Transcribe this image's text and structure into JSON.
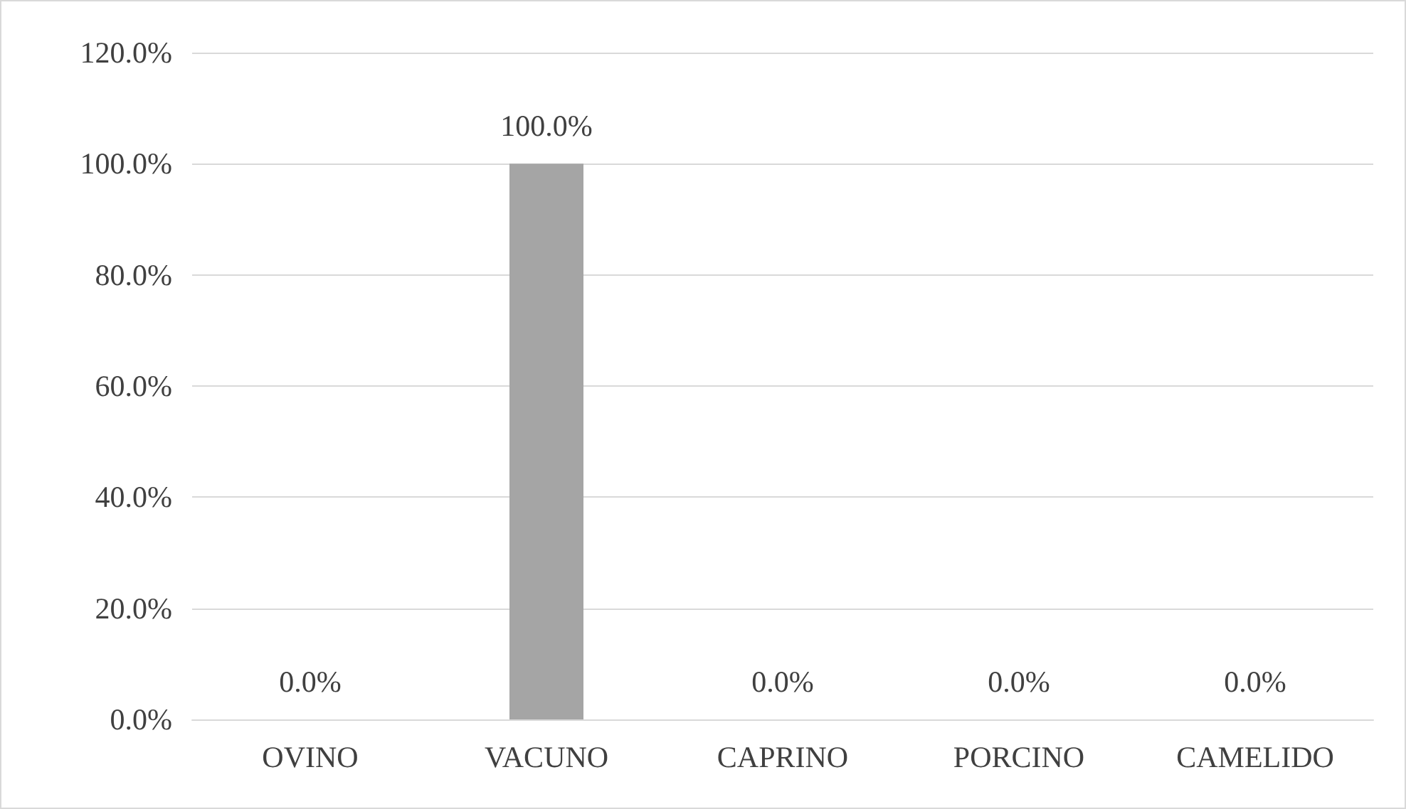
{
  "chart_data": {
    "type": "bar",
    "categories": [
      "OVINO",
      "VACUNO",
      "CAPRINO",
      "PORCINO",
      "CAMELIDO"
    ],
    "values": [
      0,
      100,
      0,
      0,
      0
    ],
    "value_labels": [
      "0.0%",
      "100.0%",
      "0.0%",
      "0.0%",
      "0.0%"
    ],
    "color": "#a5a5a5",
    "ylim": [
      0,
      120
    ],
    "yticks": [
      {
        "value": 0,
        "label": "0.0%"
      },
      {
        "value": 20,
        "label": "20.0%"
      },
      {
        "value": 40,
        "label": "40.0%"
      },
      {
        "value": 60,
        "label": "60.0%"
      },
      {
        "value": 80,
        "label": "80.0%"
      },
      {
        "value": 100,
        "label": "100.0%"
      },
      {
        "value": 120,
        "label": "120.0%"
      }
    ],
    "grid": true
  }
}
